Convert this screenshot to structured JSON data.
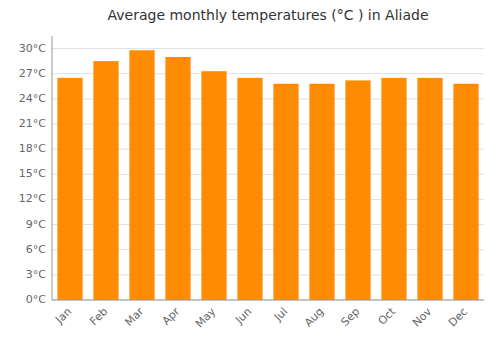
{
  "chart_data": {
    "type": "bar",
    "title": "Average monthly temperatures (°C ) in Aliade",
    "categories": [
      "Jan",
      "Feb",
      "Mar",
      "Apr",
      "May",
      "Jun",
      "Jul",
      "Aug",
      "Sep",
      "Oct",
      "Nov",
      "Dec"
    ],
    "values": [
      26.5,
      28.5,
      29.8,
      29.0,
      27.3,
      26.5,
      25.8,
      25.8,
      26.2,
      26.5,
      26.5,
      25.8
    ],
    "color": "#FF8C00",
    "ylim": [
      0,
      31.5
    ],
    "yticks": [
      {
        "value": 0,
        "label": "0°C"
      },
      {
        "value": 3,
        "label": "3°C"
      },
      {
        "value": 6,
        "label": "6°C"
      },
      {
        "value": 9,
        "label": "9°C"
      },
      {
        "value": 12,
        "label": "12°C"
      },
      {
        "value": 15,
        "label": "15°C"
      },
      {
        "value": 18,
        "label": "18°C"
      },
      {
        "value": 21,
        "label": "21°C"
      },
      {
        "value": 24,
        "label": "24°C"
      },
      {
        "value": 27,
        "label": "27°C"
      },
      {
        "value": 30,
        "label": "30°C"
      }
    ],
    "grid": true
  }
}
